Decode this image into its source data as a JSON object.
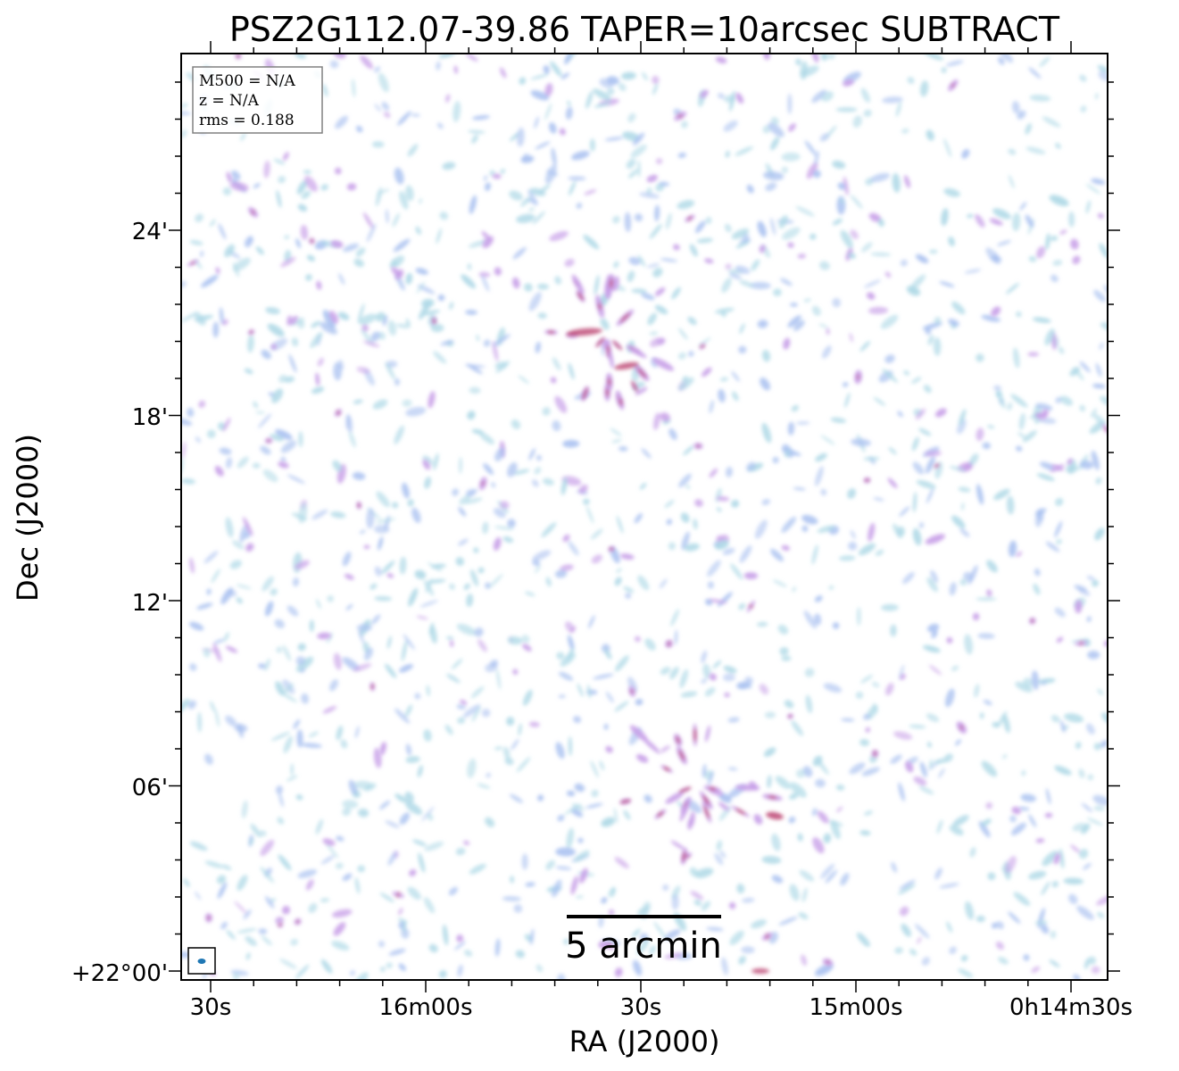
{
  "chart_data": {
    "type": "heatmap",
    "title": "PSZ2G112.07-39.86 TAPER=10arcsec SUBTRACT",
    "xlabel": "RA (J2000)",
    "ylabel": "Dec (J2000)",
    "x_ticks": [
      "30s",
      "16m00s",
      "30s",
      "15m00s",
      "0h14m30s"
    ],
    "y_ticks": [
      "+22°00'",
      "06'",
      "12'",
      "18'",
      "24'"
    ],
    "info": {
      "m500": "M500 = N/A",
      "z": "z = N/A",
      "rms": "rms = 0.188"
    },
    "scalebar_label": "5 arcmin",
    "colormap": [
      "#add8e6",
      "#a8c0f0",
      "#c8a0e8",
      "#c0507a"
    ],
    "beam_color": "#1f77b4"
  }
}
